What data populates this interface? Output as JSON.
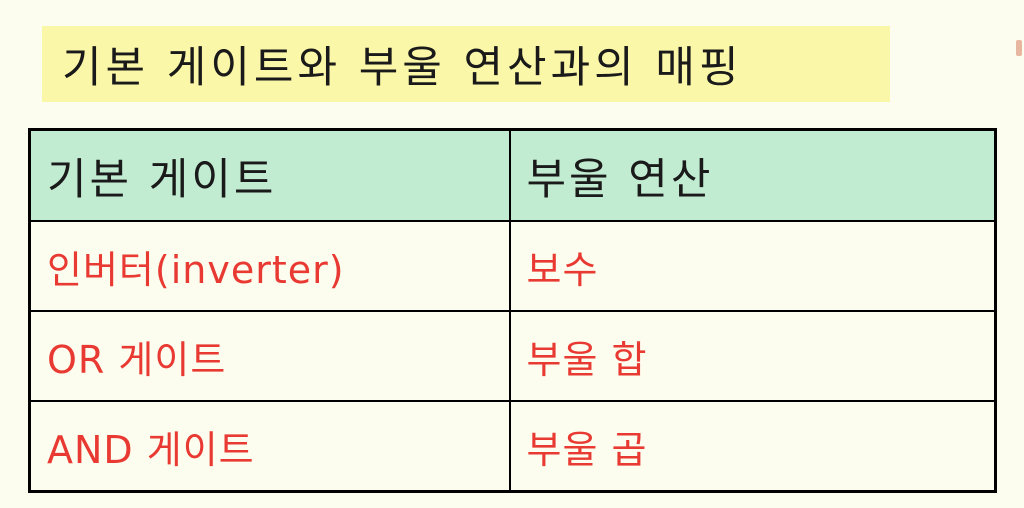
{
  "slide": {
    "title": "기본 게이트와 부울 연산과의 매핑"
  },
  "table": {
    "headers": [
      "기본 게이트",
      "부울 연산"
    ],
    "rows": [
      [
        "인버터(inverter)",
        "보수"
      ],
      [
        "OR 게이트",
        "부울 합"
      ],
      [
        "AND 게이트",
        "부울 곱"
      ]
    ]
  },
  "colors": {
    "background": "#fdfdef",
    "title_highlight": "#fbf7a8",
    "header_fill": "#c2ecd1",
    "body_text": "#e83a32",
    "header_text": "#1a1a1a"
  }
}
